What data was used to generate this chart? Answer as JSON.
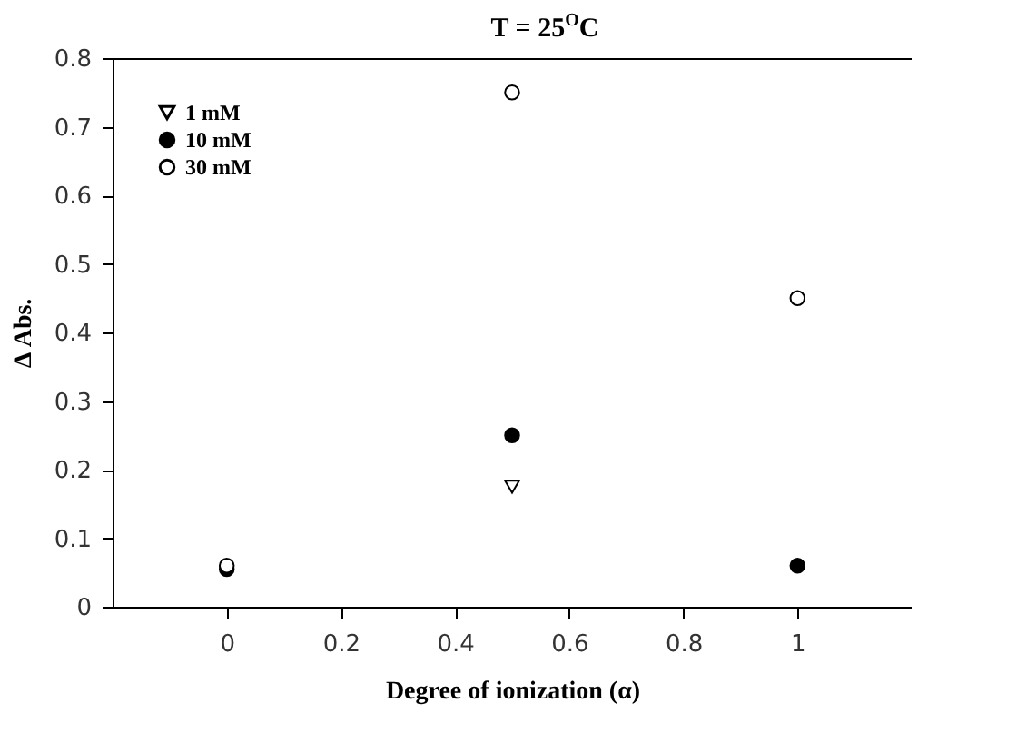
{
  "chart_data": {
    "type": "scatter",
    "title": "T = 25$^{O}$C",
    "xlabel": "Degree of ionization (α)",
    "ylabel": "Δ Abs.",
    "x": [
      0,
      0.5,
      1
    ],
    "series": [
      {
        "name": "1 mM",
        "color": "#ffffff",
        "marker": "triangle",
        "values": [
          null,
          0.175,
          null
        ]
      },
      {
        "name": "10 mM",
        "color": "#000000",
        "marker": "circle",
        "values": [
          0.055,
          0.25,
          0.06
        ]
      },
      {
        "name": "30 mM",
        "color": "#ffffff",
        "marker": "circle",
        "values": [
          0.06,
          0.75,
          0.45
        ]
      }
    ],
    "xlim": [
      -0.2,
      1.2
    ],
    "xticks": [
      0,
      0.2,
      0.4,
      0.6,
      0.8,
      1
    ],
    "ylim": [
      0,
      0.8
    ],
    "yticks": [
      0,
      0.1,
      0.2,
      0.3,
      0.4,
      0.5,
      0.6,
      0.7,
      0.8
    ],
    "grid": false,
    "legend": "top left"
  }
}
